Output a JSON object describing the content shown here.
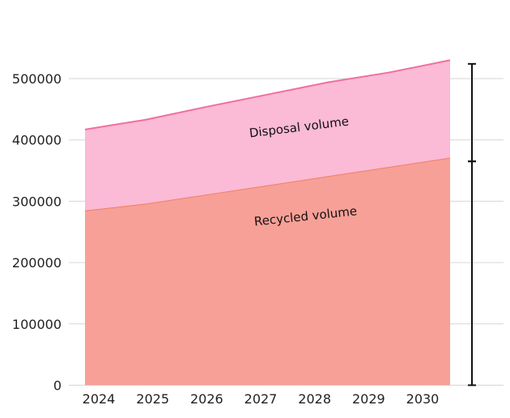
{
  "chart_data": {
    "type": "area",
    "stacked": true,
    "x": [
      "2024",
      "2025",
      "2026",
      "2027",
      "2028",
      "2029",
      "2030"
    ],
    "series": [
      {
        "name": "Recycled volume",
        "values": [
          285000,
          296000,
          311000,
          326000,
          341000,
          356000,
          371000
        ],
        "fill": "#f7a097",
        "line": "#f07f62"
      },
      {
        "name": "Disposal volume",
        "values": [
          132000,
          137000,
          143000,
          148000,
          153000,
          154000,
          159000
        ],
        "fill": "#fbbad6",
        "line": "#f0709d"
      }
    ],
    "y_ticks": [
      "0",
      "100000",
      "200000",
      "300000",
      "400000",
      "500000"
    ],
    "ylim": [
      0,
      500000
    ],
    "grid": true,
    "legend": "none",
    "annotations": [
      {
        "type": "bracket",
        "from": 0,
        "to": 365000
      },
      {
        "type": "bracket",
        "from": 365000,
        "to": 524000
      }
    ]
  }
}
